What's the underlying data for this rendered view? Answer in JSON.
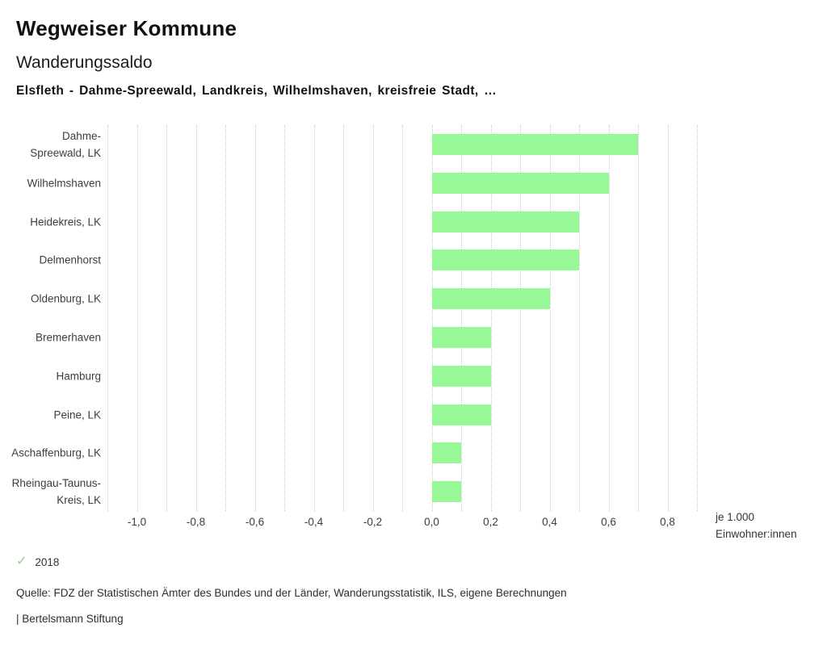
{
  "header": {
    "title": "Wegweiser Kommune",
    "subtitle": "Wanderungssaldo",
    "description": "Elsfleth - Dahme-Spreewald, Landkreis, Wilhelmshaven, kreisfreie Stadt, …"
  },
  "chart_data": {
    "type": "bar",
    "orientation": "horizontal",
    "title": "Wanderungssaldo",
    "categories": [
      "Dahme-Spreewald, LK",
      "Wilhelmshaven",
      "Heidekreis, LK",
      "Delmenhorst",
      "Oldenburg, LK",
      "Bremerhaven",
      "Hamburg",
      "Peine, LK",
      "Aschaffenburg, LK",
      "Rheingau-Taunus-Kreis, LK"
    ],
    "series": [
      {
        "name": "2018",
        "values": [
          0.7,
          0.6,
          0.5,
          0.5,
          0.4,
          0.2,
          0.2,
          0.2,
          0.1,
          0.1
        ]
      }
    ],
    "xlabel": "je 1.000 Einwohner:innen",
    "ylabel": "",
    "xlim": [
      -1.1,
      0.9
    ],
    "grid_step": 0.1,
    "x_ticks": [
      -1.0,
      -0.8,
      -0.6,
      -0.4,
      -0.2,
      0.0,
      0.2,
      0.4,
      0.6,
      0.8
    ],
    "x_tick_labels": [
      "-1,0",
      "-0,8",
      "-0,6",
      "-0,4",
      "-0,2",
      "0,0",
      "0,2",
      "0,4",
      "0,6",
      "0,8"
    ],
    "grid": true,
    "legend_position": "bottom-left",
    "bar_color": "#98f898",
    "gridline_color": "#c9c9c9"
  },
  "unit": {
    "line1": "je 1.000",
    "line2": "Einwohner:innen"
  },
  "legend": {
    "check_icon": "✓",
    "check_color": "#8fd092",
    "year": "2018"
  },
  "footer": {
    "source": "Quelle: FDZ der Statistischen Ämter des Bundes und der Länder, Wanderungsstatistik, ILS, eigene Berechnungen",
    "branding": "| Bertelsmann Stiftung"
  }
}
